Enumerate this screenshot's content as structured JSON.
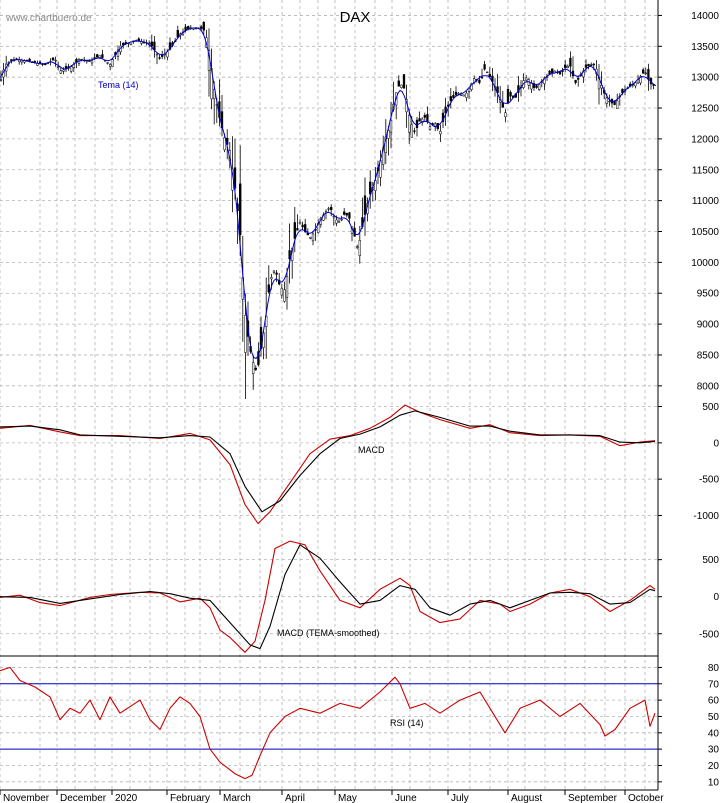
{
  "watermark": "www.chartbuero.de",
  "chart_data": [
    {
      "type": "candlestick",
      "title": "DAX",
      "indicator_label": "Tema (14)",
      "y_ticks": [
        8000,
        8500,
        9000,
        9500,
        10000,
        10500,
        11000,
        11500,
        12000,
        12500,
        13000,
        13500,
        14000
      ],
      "ylim": [
        7900,
        14250
      ],
      "x_months": [
        "November",
        "December",
        "2020",
        "February",
        "March",
        "April",
        "May",
        "June",
        "July",
        "August",
        "September",
        "October"
      ],
      "grid": true,
      "price_path": [
        [
          0,
          12900
        ],
        [
          5,
          13200
        ],
        [
          15,
          13300
        ],
        [
          30,
          13250
        ],
        [
          45,
          13200
        ],
        [
          55,
          13300
        ],
        [
          60,
          13100
        ],
        [
          70,
          13150
        ],
        [
          80,
          13300
        ],
        [
          90,
          13250
        ],
        [
          100,
          13350
        ],
        [
          110,
          13200
        ],
        [
          120,
          13500
        ],
        [
          135,
          13600
        ],
        [
          150,
          13550
        ],
        [
          160,
          13300
        ],
        [
          170,
          13450
        ],
        [
          180,
          13700
        ],
        [
          190,
          13800
        ],
        [
          200,
          13800
        ],
        [
          205,
          13750
        ],
        [
          210,
          13350
        ],
        [
          215,
          12700
        ],
        [
          220,
          12300
        ],
        [
          225,
          12000
        ],
        [
          230,
          11800
        ],
        [
          235,
          11200
        ],
        [
          240,
          10500
        ],
        [
          243,
          9700
        ],
        [
          246,
          9000
        ],
        [
          250,
          8600
        ],
        [
          255,
          8250
        ],
        [
          258,
          8300
        ],
        [
          262,
          8700
        ],
        [
          266,
          9100
        ],
        [
          270,
          9700
        ],
        [
          275,
          9900
        ],
        [
          280,
          9600
        ],
        [
          285,
          9550
        ],
        [
          290,
          10100
        ],
        [
          295,
          10400
        ],
        [
          300,
          10650
        ],
        [
          305,
          10500
        ],
        [
          310,
          10400
        ],
        [
          315,
          10500
        ],
        [
          320,
          10700
        ],
        [
          325,
          10800
        ],
        [
          330,
          10900
        ],
        [
          335,
          10700
        ],
        [
          340,
          10650
        ],
        [
          345,
          10800
        ],
        [
          350,
          10700
        ],
        [
          355,
          10400
        ],
        [
          358,
          10200
        ],
        [
          362,
          10550
        ],
        [
          366,
          10850
        ],
        [
          370,
          11100
        ],
        [
          375,
          11300
        ],
        [
          380,
          11600
        ],
        [
          385,
          12000
        ],
        [
          390,
          12200
        ],
        [
          395,
          12700
        ],
        [
          400,
          12900
        ],
        [
          405,
          12800
        ],
        [
          410,
          12300
        ],
        [
          415,
          12100
        ],
        [
          420,
          12300
        ],
        [
          425,
          12350
        ],
        [
          430,
          12200
        ],
        [
          435,
          12250
        ],
        [
          440,
          12100
        ],
        [
          445,
          12400
        ],
        [
          450,
          12600
        ],
        [
          455,
          12700
        ],
        [
          460,
          12750
        ],
        [
          465,
          12700
        ],
        [
          470,
          12850
        ],
        [
          475,
          13000
        ],
        [
          480,
          12900
        ],
        [
          485,
          13150
        ],
        [
          490,
          13000
        ],
        [
          495,
          12850
        ],
        [
          500,
          12650
        ],
        [
          505,
          12400
        ],
        [
          510,
          12700
        ],
        [
          515,
          12650
        ],
        [
          520,
          12800
        ],
        [
          525,
          13000
        ],
        [
          530,
          12950
        ],
        [
          535,
          12800
        ],
        [
          540,
          12900
        ],
        [
          545,
          13000
        ],
        [
          550,
          13050
        ],
        [
          555,
          13100
        ],
        [
          560,
          13050
        ],
        [
          565,
          13150
        ],
        [
          570,
          13200
        ],
        [
          575,
          12900
        ],
        [
          580,
          13000
        ],
        [
          585,
          13150
        ],
        [
          590,
          13200
        ],
        [
          595,
          13200
        ],
        [
          600,
          12950
        ],
        [
          605,
          12700
        ],
        [
          610,
          12600
        ],
        [
          615,
          12550
        ],
        [
          620,
          12700
        ],
        [
          625,
          12800
        ],
        [
          630,
          12850
        ],
        [
          635,
          12900
        ],
        [
          640,
          13000
        ],
        [
          645,
          13100
        ],
        [
          650,
          12900
        ],
        [
          655,
          12850
        ]
      ]
    },
    {
      "type": "line",
      "label": "MACD",
      "y_ticks": [
        -1000,
        -500,
        0,
        500
      ],
      "ylim": [
        -1200,
        700
      ],
      "series": [
        {
          "color": "#cc0000",
          "points": [
            [
              0,
              200
            ],
            [
              30,
              240
            ],
            [
              60,
              150
            ],
            [
              80,
              100
            ],
            [
              120,
              100
            ],
            [
              160,
              60
            ],
            [
              190,
              130
            ],
            [
              210,
              40
            ],
            [
              230,
              -300
            ],
            [
              245,
              -850
            ],
            [
              258,
              -1110
            ],
            [
              270,
              -950
            ],
            [
              290,
              -550
            ],
            [
              310,
              -150
            ],
            [
              330,
              50
            ],
            [
              350,
              100
            ],
            [
              370,
              200
            ],
            [
              390,
              350
            ],
            [
              405,
              520
            ],
            [
              420,
              420
            ],
            [
              440,
              320
            ],
            [
              470,
              200
            ],
            [
              490,
              250
            ],
            [
              510,
              140
            ],
            [
              540,
              100
            ],
            [
              570,
              110
            ],
            [
              600,
              90
            ],
            [
              620,
              -40
            ],
            [
              640,
              10
            ],
            [
              655,
              30
            ]
          ]
        },
        {
          "color": "#000000",
          "points": [
            [
              0,
              220
            ],
            [
              30,
              230
            ],
            [
              60,
              180
            ],
            [
              80,
              110
            ],
            [
              120,
              90
            ],
            [
              160,
              70
            ],
            [
              190,
              100
            ],
            [
              210,
              80
            ],
            [
              230,
              -150
            ],
            [
              245,
              -600
            ],
            [
              262,
              -950
            ],
            [
              280,
              -800
            ],
            [
              300,
              -450
            ],
            [
              320,
              -150
            ],
            [
              340,
              60
            ],
            [
              360,
              120
            ],
            [
              380,
              220
            ],
            [
              400,
              380
            ],
            [
              415,
              440
            ],
            [
              440,
              350
            ],
            [
              470,
              230
            ],
            [
              490,
              230
            ],
            [
              510,
              160
            ],
            [
              540,
              110
            ],
            [
              570,
              110
            ],
            [
              600,
              100
            ],
            [
              620,
              10
            ],
            [
              640,
              0
            ],
            [
              655,
              20
            ]
          ]
        }
      ]
    },
    {
      "type": "line",
      "label": "MACD (TEMA-smoothed)",
      "y_ticks": [
        -500,
        0,
        500
      ],
      "ylim": [
        -800,
        900
      ],
      "series": [
        {
          "color": "#cc0000",
          "points": [
            [
              0,
              -10
            ],
            [
              20,
              20
            ],
            [
              40,
              -80
            ],
            [
              60,
              -120
            ],
            [
              90,
              -10
            ],
            [
              110,
              30
            ],
            [
              140,
              60
            ],
            [
              160,
              50
            ],
            [
              180,
              -70
            ],
            [
              200,
              -20
            ],
            [
              210,
              -150
            ],
            [
              220,
              -450
            ],
            [
              230,
              -550
            ],
            [
              245,
              -750
            ],
            [
              255,
              -600
            ],
            [
              265,
              -50
            ],
            [
              275,
              650
            ],
            [
              290,
              750
            ],
            [
              305,
              700
            ],
            [
              320,
              350
            ],
            [
              340,
              -50
            ],
            [
              360,
              -150
            ],
            [
              380,
              100
            ],
            [
              400,
              250
            ],
            [
              410,
              150
            ],
            [
              420,
              -200
            ],
            [
              440,
              -350
            ],
            [
              460,
              -300
            ],
            [
              480,
              -50
            ],
            [
              500,
              -100
            ],
            [
              510,
              -200
            ],
            [
              530,
              -100
            ],
            [
              550,
              50
            ],
            [
              570,
              100
            ],
            [
              590,
              0
            ],
            [
              610,
              -200
            ],
            [
              630,
              -50
            ],
            [
              650,
              150
            ],
            [
              655,
              100
            ]
          ]
        },
        {
          "color": "#000000",
          "points": [
            [
              0,
              0
            ],
            [
              30,
              -10
            ],
            [
              60,
              -90
            ],
            [
              90,
              -30
            ],
            [
              120,
              30
            ],
            [
              150,
              70
            ],
            [
              170,
              40
            ],
            [
              190,
              -20
            ],
            [
              210,
              -50
            ],
            [
              230,
              -350
            ],
            [
              250,
              -650
            ],
            [
              260,
              -700
            ],
            [
              270,
              -400
            ],
            [
              285,
              300
            ],
            [
              300,
              700
            ],
            [
              320,
              520
            ],
            [
              340,
              200
            ],
            [
              360,
              -100
            ],
            [
              380,
              -50
            ],
            [
              400,
              150
            ],
            [
              415,
              100
            ],
            [
              430,
              -150
            ],
            [
              450,
              -250
            ],
            [
              470,
              -100
            ],
            [
              490,
              -50
            ],
            [
              510,
              -150
            ],
            [
              530,
              -50
            ],
            [
              550,
              50
            ],
            [
              570,
              60
            ],
            [
              590,
              40
            ],
            [
              610,
              -100
            ],
            [
              630,
              -80
            ],
            [
              650,
              100
            ],
            [
              655,
              80
            ]
          ]
        }
      ]
    },
    {
      "type": "line",
      "label": "RSI (14)",
      "y_ticks": [
        10,
        20,
        30,
        40,
        50,
        60,
        70,
        80
      ],
      "ylim": [
        5,
        87
      ],
      "reference_lines": [
        70,
        30
      ],
      "series": [
        {
          "color": "#cc0000",
          "points": [
            [
              0,
              78
            ],
            [
              10,
              80
            ],
            [
              20,
              72
            ],
            [
              35,
              68
            ],
            [
              50,
              62
            ],
            [
              60,
              48
            ],
            [
              70,
              55
            ],
            [
              80,
              52
            ],
            [
              90,
              60
            ],
            [
              100,
              48
            ],
            [
              110,
              62
            ],
            [
              120,
              52
            ],
            [
              140,
              60
            ],
            [
              150,
              48
            ],
            [
              160,
              42
            ],
            [
              170,
              55
            ],
            [
              180,
              62
            ],
            [
              190,
              58
            ],
            [
              200,
              50
            ],
            [
              210,
              30
            ],
            [
              220,
              22
            ],
            [
              235,
              15
            ],
            [
              245,
              12
            ],
            [
              252,
              14
            ],
            [
              260,
              26
            ],
            [
              270,
              40
            ],
            [
              285,
              50
            ],
            [
              300,
              55
            ],
            [
              320,
              52
            ],
            [
              340,
              58
            ],
            [
              360,
              55
            ],
            [
              380,
              65
            ],
            [
              395,
              74
            ],
            [
              400,
              70
            ],
            [
              410,
              55
            ],
            [
              425,
              58
            ],
            [
              440,
              52
            ],
            [
              460,
              60
            ],
            [
              480,
              65
            ],
            [
              490,
              55
            ],
            [
              505,
              40
            ],
            [
              520,
              55
            ],
            [
              540,
              60
            ],
            [
              560,
              50
            ],
            [
              580,
              58
            ],
            [
              600,
              45
            ],
            [
              605,
              38
            ],
            [
              615,
              42
            ],
            [
              630,
              55
            ],
            [
              645,
              60
            ],
            [
              650,
              44
            ],
            [
              655,
              52
            ]
          ]
        }
      ]
    }
  ]
}
